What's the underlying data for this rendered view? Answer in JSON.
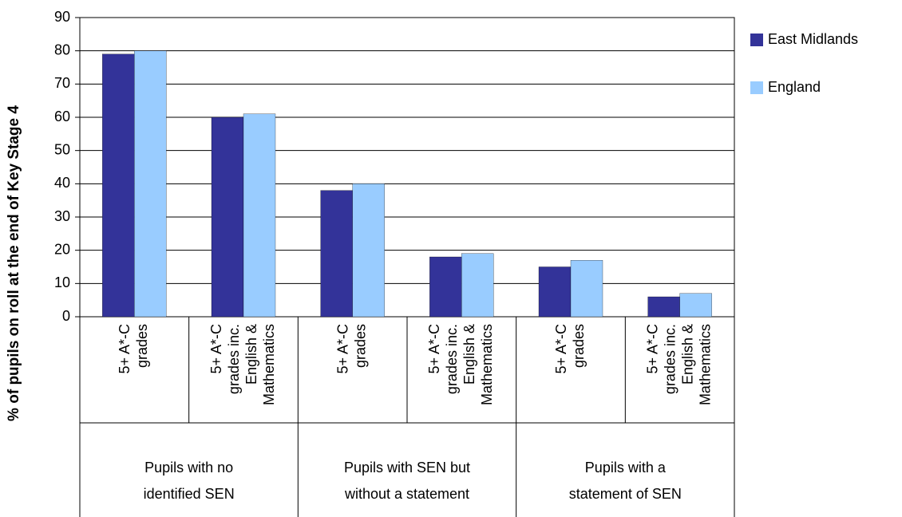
{
  "chart_data": {
    "type": "bar",
    "y_label": "% of pupils on roll at the end of Key Stage 4",
    "categories": [
      [
        "5+ A*-C",
        "grades"
      ],
      [
        "5+ A*-C",
        "grades inc.",
        "English &",
        "Mathematics"
      ],
      [
        "5+ A*-C",
        "grades"
      ],
      [
        "5+ A*-C",
        "grades inc.",
        "English &",
        "Mathematics"
      ],
      [
        "5+ A*-C",
        "grades"
      ],
      [
        "5+ A*-C",
        "grades inc.",
        "English &",
        "Mathematics"
      ]
    ],
    "groups": [
      [
        "Pupils with no",
        "identified SEN"
      ],
      [
        "Pupils with SEN but",
        "without a statement"
      ],
      [
        "Pupils with a",
        "statement of SEN"
      ]
    ],
    "series": [
      {
        "name": "East Midlands",
        "color": "#333399",
        "values": [
          79,
          60,
          38,
          18,
          15,
          6
        ]
      },
      {
        "name": "England",
        "color": "#99ccff",
        "values": [
          80,
          61,
          40,
          19,
          17,
          7
        ]
      }
    ],
    "ylim": [
      0,
      90
    ],
    "yticks": [
      0,
      10,
      20,
      30,
      40,
      50,
      60,
      70,
      80,
      90
    ],
    "grid": true,
    "legend": "right"
  }
}
